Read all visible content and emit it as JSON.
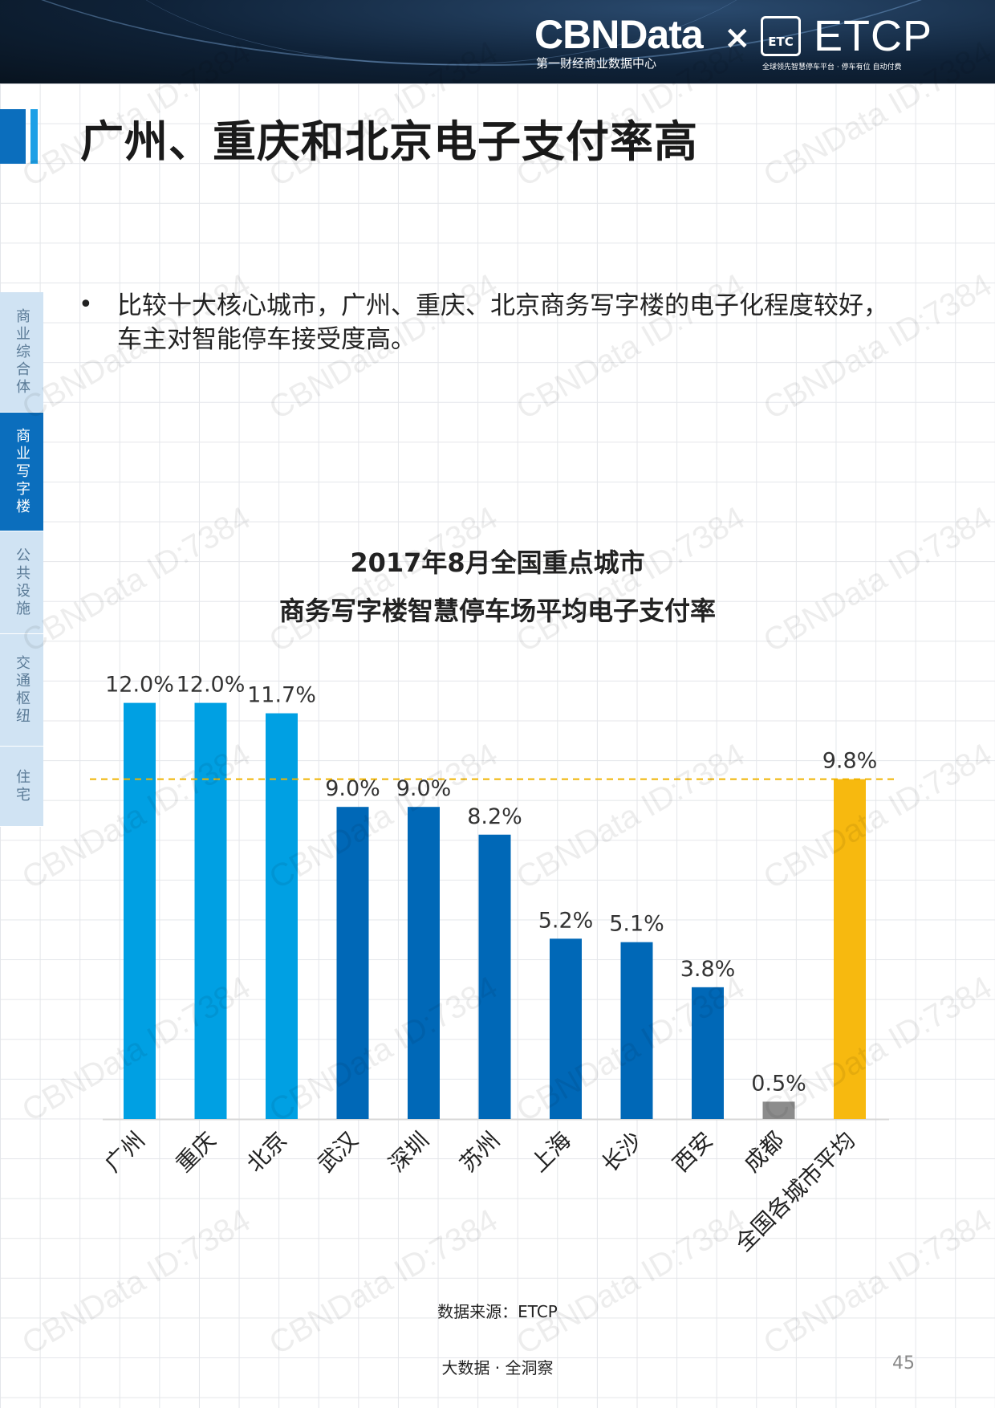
{
  "header": {
    "brand_left": "CBNData",
    "brand_left_sub": "第一财经商业数据中心",
    "separator": "×",
    "brand_right": "ETCP",
    "brand_right_logo": "ETC",
    "brand_right_sub": "全球领先智慧停车平台 · 停车有位 自动付费"
  },
  "page_title": "广州、重庆和北京电子支付率高",
  "side_nav": [
    {
      "label": "商业综合体",
      "active": false
    },
    {
      "label": "商业写字楼",
      "active": true
    },
    {
      "label": "公共设施",
      "active": false
    },
    {
      "label": "交通枢纽",
      "active": false
    },
    {
      "label": "住宅",
      "active": false
    }
  ],
  "bullet": {
    "marker": "•",
    "text": "比较十大核心城市，广州、重庆、北京商务写字楼的电子化程度较好，车主对智能停车接受度高。"
  },
  "chart_data": {
    "type": "bar",
    "title": "2017年8月全国重点城市",
    "subtitle": "商务写字楼智慧停车场平均电子支付率",
    "categories": [
      "广州",
      "重庆",
      "北京",
      "武汉",
      "深圳",
      "苏州",
      "上海",
      "长沙",
      "西安",
      "成都",
      "全国各城市平均"
    ],
    "values": [
      12.0,
      12.0,
      11.7,
      9.0,
      9.0,
      8.2,
      5.2,
      5.1,
      3.8,
      0.5,
      9.8
    ],
    "value_labels": [
      "12.0%",
      "12.0%",
      "11.7%",
      "9.0%",
      "9.0%",
      "8.2%",
      "5.2%",
      "5.1%",
      "3.8%",
      "0.5%",
      "9.8%"
    ],
    "colors": [
      "#00a0e3",
      "#00a0e3",
      "#00a0e3",
      "#0068b7",
      "#0068b7",
      "#0068b7",
      "#0068b7",
      "#0068b7",
      "#0068b7",
      "#8c8c8c",
      "#f7b90f"
    ],
    "reference_line": {
      "value": 9.8,
      "color": "#f0b400",
      "style": "dashed"
    },
    "ylim": [
      0,
      13
    ],
    "xlabel": "",
    "ylabel": "",
    "grid": false,
    "legend": "none"
  },
  "source": "数据来源：ETCP",
  "footer": "大数据 · 全洞察",
  "page_number": "45",
  "watermark": "CBNData ID:7384"
}
